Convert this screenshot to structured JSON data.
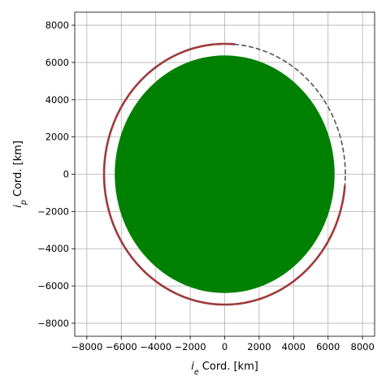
{
  "chart_data": {
    "type": "line",
    "title": "",
    "xlabel": {
      "prefix": "i",
      "sub": "e",
      "suffix": " Cord. [km]"
    },
    "ylabel": {
      "prefix": "i",
      "sub": "p",
      "suffix": " Cord. [km]"
    },
    "xlim": [
      -8700,
      8700
    ],
    "ylim": [
      -8700,
      8700
    ],
    "xticks": [
      -8000,
      -6000,
      -4000,
      -2000,
      0,
      2000,
      4000,
      6000,
      8000
    ],
    "yticks": [
      -8000,
      -6000,
      -4000,
      -2000,
      0,
      2000,
      4000,
      6000,
      8000
    ],
    "xtick_labels": [
      "−8000",
      "−6000",
      "−4000",
      "−2000",
      "0",
      "2000",
      "4000",
      "6000",
      "8000"
    ],
    "ytick_labels": [
      "−8000",
      "−6000",
      "−4000",
      "−2000",
      "0",
      "2000",
      "4000",
      "6000",
      "8000"
    ],
    "grid": true,
    "legend": "none",
    "earth": {
      "cx": 0,
      "cy": 0,
      "rx": 6378,
      "ry": 6378,
      "color": "#008000"
    },
    "series": [
      {
        "kind": "orbit-reference",
        "radius": 7000,
        "start_deg": 0,
        "end_deg": 360,
        "color": "#555555",
        "style": "dashed"
      },
      {
        "kind": "orbit-propagated",
        "radius": 7000,
        "start_deg": 85,
        "end_deg": 355,
        "color": "#d62728",
        "style": "solid"
      },
      {
        "kind": "orbit-propagated-overlay",
        "radius": 7000,
        "start_deg": 85,
        "end_deg": 355,
        "color": "#555555",
        "style": "dashed"
      }
    ]
  }
}
